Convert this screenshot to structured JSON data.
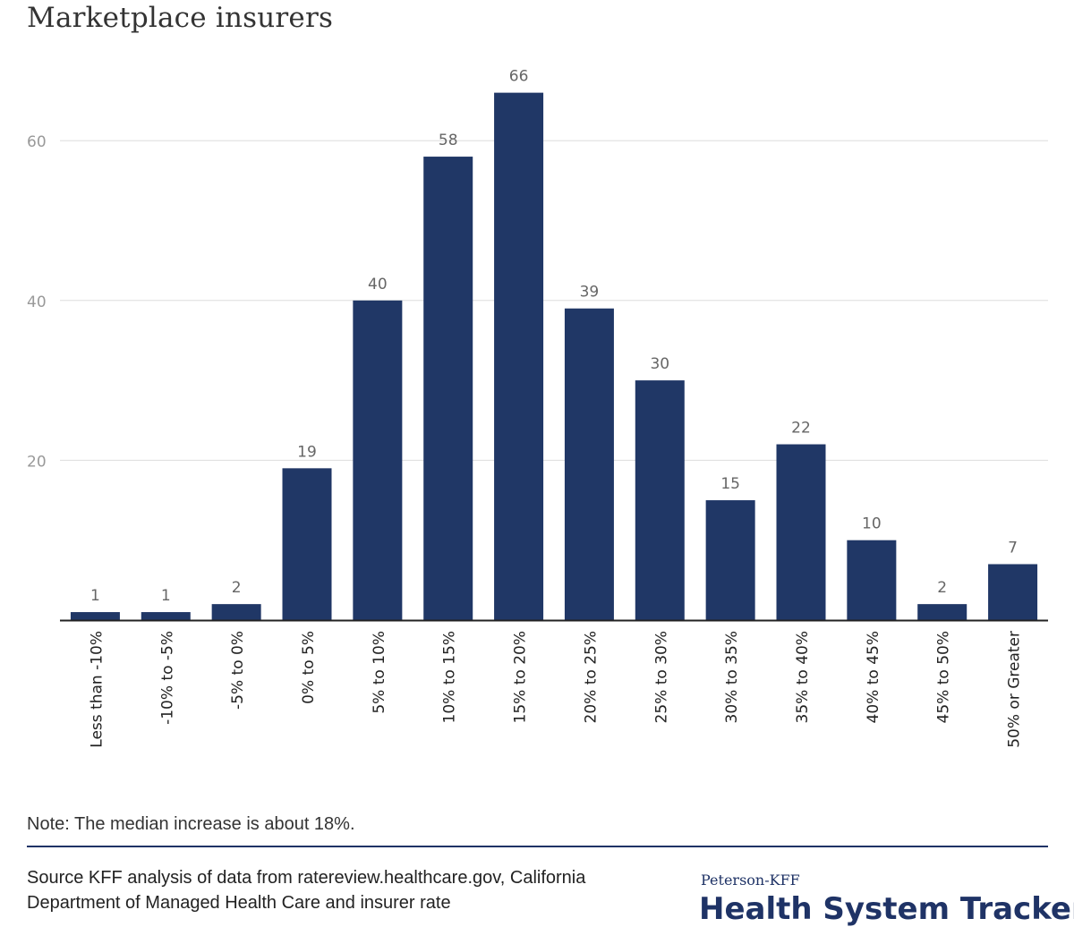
{
  "header": {
    "title": "Marketplace insurers"
  },
  "chart_data": {
    "type": "bar",
    "title": "Marketplace insurers",
    "xlabel": "",
    "ylabel": "",
    "categories": [
      "Less than -10%",
      "-10% to -5%",
      "-5% to 0%",
      "0% to 5%",
      "5% to 10%",
      "10% to 15%",
      "15% to 20%",
      "20% to 25%",
      "25% to 30%",
      "30% to 35%",
      "35% to 40%",
      "40% to 45%",
      "45% to 50%",
      "50% or Greater"
    ],
    "values": [
      1,
      1,
      2,
      19,
      40,
      58,
      66,
      39,
      30,
      15,
      22,
      10,
      2,
      7
    ],
    "data_labels": [
      "1",
      "1",
      "2",
      "19",
      "40",
      "58",
      "66",
      "39",
      "30",
      "15",
      "22",
      "10",
      "2",
      "7"
    ],
    "yticks": [
      20,
      40,
      60
    ],
    "ytick_labels": [
      "20",
      "40",
      "60"
    ],
    "ylim": [
      0,
      70
    ],
    "grid": true,
    "bar_color": "#203766"
  },
  "footer": {
    "note": "Note: The median increase is about 18%.",
    "source": "Source KFF analysis of data from ratereview.healthcare.gov, California Department of Managed Health Care and insurer rate",
    "brand_small": "Peterson-KFF",
    "brand_big": "Health System Tracker"
  }
}
